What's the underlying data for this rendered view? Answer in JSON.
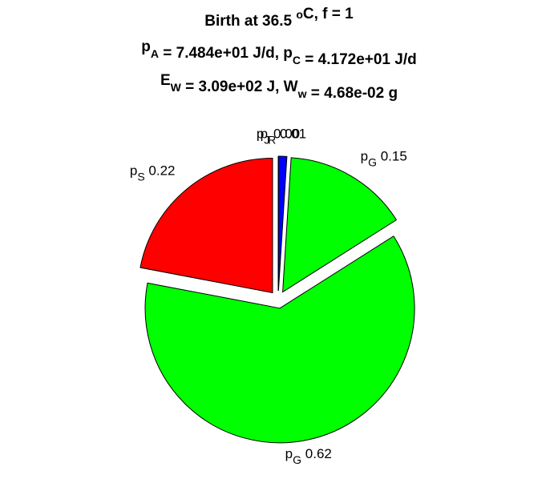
{
  "chart_data": {
    "type": "pie",
    "title": [
      [
        {
          "text": "Birth at 36.5 "
        },
        {
          "sup": "o"
        },
        {
          "text": "C, f = 1"
        }
      ],
      [
        {
          "text": "p"
        },
        {
          "sub": "A"
        },
        {
          "text": " = 7.484e+01 J/d, p"
        },
        {
          "sub": "C"
        },
        {
          "text": " = 4.172e+01 J/d"
        }
      ],
      [
        {
          "text": "E"
        },
        {
          "sub": "W"
        },
        {
          "text": " = 3.09e+02 J, W"
        },
        {
          "sub": "w"
        },
        {
          "text": " = 4.68e-02 g"
        }
      ]
    ],
    "label_prefix": "p",
    "categories": [
      "S",
      "G",
      "G",
      "R",
      "J"
    ],
    "values": [
      0.22,
      0.62,
      0.15,
      0.01,
      0.0
    ],
    "value_labels": [
      "0.22",
      "0.62",
      "0.15",
      "0.01",
      "0.00"
    ],
    "colors": [
      "#ff0000",
      "#00ff00",
      "#00ff00",
      "#0000ff",
      null
    ],
    "exploded": true
  }
}
